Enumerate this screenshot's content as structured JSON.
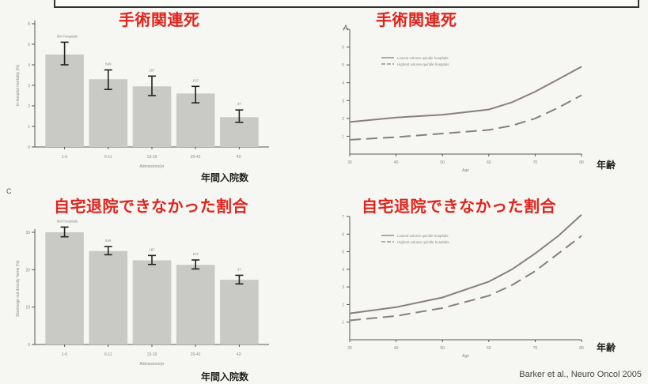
{
  "titles": {
    "top_left": "手術関連死",
    "top_right": "手術関連死",
    "bottom_left": "自宅退院できなかった割合",
    "bottom_right": "自宅退院できなかった割合"
  },
  "labels": {
    "annual_admissions": "年間入院数",
    "age": "年齢",
    "panel_a": "A",
    "panel_c": "C"
  },
  "citation": "Barker et al., Neuro Oncol 2005",
  "colors": {
    "title": "#e0231c",
    "bar": "#c9c9c6",
    "line": "#8a7f7f",
    "axis": "#555555"
  },
  "chart_data": [
    {
      "id": "mortality_by_volume",
      "type": "bar",
      "categories": [
        "1-6",
        "6-11",
        "13-19",
        "20-41",
        "42-"
      ],
      "values": [
        4.5,
        3.3,
        2.95,
        2.6,
        1.45
      ],
      "errors": [
        [
          4.0,
          5.1
        ],
        [
          2.8,
          3.75
        ],
        [
          2.5,
          3.45
        ],
        [
          2.15,
          2.95
        ],
        [
          1.2,
          1.8
        ]
      ],
      "data_labels": [
        "994 hospitals",
        "549",
        "187",
        "107",
        "37"
      ],
      "ylim": [
        0,
        6
      ],
      "yticks": [
        0,
        1,
        2,
        3,
        4,
        5,
        6
      ],
      "xlabel": "Admissions/yr",
      "ylabel": "In-hospital mortality (%)"
    },
    {
      "id": "mortality_by_age",
      "type": "line",
      "panel": "A",
      "x_domain": [
        30,
        80
      ],
      "ylim": [
        0,
        7
      ],
      "xticks": [
        30,
        40,
        50,
        60,
        70,
        80
      ],
      "yticks": [
        1,
        2,
        3,
        4,
        5,
        6,
        7
      ],
      "xlabel": "Age",
      "series": [
        {
          "name": "Lowest volume quintile hospitals",
          "style": "solid",
          "x": [
            30,
            40,
            50,
            60,
            65,
            70,
            75,
            80
          ],
          "y": [
            1.8,
            2.05,
            2.2,
            2.5,
            2.9,
            3.5,
            4.2,
            4.9
          ]
        },
        {
          "name": "Highest volume quintile hospitals",
          "style": "dashed",
          "x": [
            30,
            40,
            50,
            60,
            65,
            70,
            75,
            80
          ],
          "y": [
            0.8,
            0.95,
            1.15,
            1.35,
            1.6,
            2.0,
            2.6,
            3.3
          ]
        }
      ]
    },
    {
      "id": "discharge_not_home_by_volume",
      "type": "bar",
      "panel": "C",
      "categories": [
        "1-6",
        "6-11",
        "13-19",
        "20-41",
        "42-"
      ],
      "values": [
        30,
        25,
        22.5,
        21.3,
        17.3
      ],
      "errors": [
        [
          28.8,
          31.4
        ],
        [
          24.0,
          26.2
        ],
        [
          21.4,
          23.8
        ],
        [
          20.2,
          22.6
        ],
        [
          16.2,
          18.5
        ]
      ],
      "data_labels": [
        "994 hospitals",
        "549",
        "187",
        "107",
        "37"
      ],
      "ylim": [
        0,
        30
      ],
      "yticks": [
        0,
        10,
        20,
        30
      ],
      "xlabel": "Admissions/yr",
      "ylabel": "Discharge not directly home (%)"
    },
    {
      "id": "discharge_not_home_by_age",
      "type": "line",
      "x_domain": [
        30,
        80
      ],
      "ylim": [
        0,
        7
      ],
      "xticks": [
        30,
        40,
        50,
        60,
        70,
        80
      ],
      "yticks": [
        1,
        2,
        3,
        4,
        5,
        6,
        7
      ],
      "xlabel": "Age",
      "series": [
        {
          "name": "Lowest volume quintile hospitals",
          "style": "solid",
          "x": [
            30,
            40,
            50,
            60,
            65,
            70,
            75,
            80
          ],
          "y": [
            1.5,
            1.85,
            2.4,
            3.3,
            4.0,
            4.9,
            5.9,
            7.1
          ]
        },
        {
          "name": "Highest volume quintile hospitals",
          "style": "dashed",
          "x": [
            30,
            40,
            50,
            60,
            65,
            70,
            75,
            80
          ],
          "y": [
            1.1,
            1.35,
            1.8,
            2.5,
            3.1,
            3.9,
            4.9,
            5.9
          ]
        }
      ]
    }
  ]
}
